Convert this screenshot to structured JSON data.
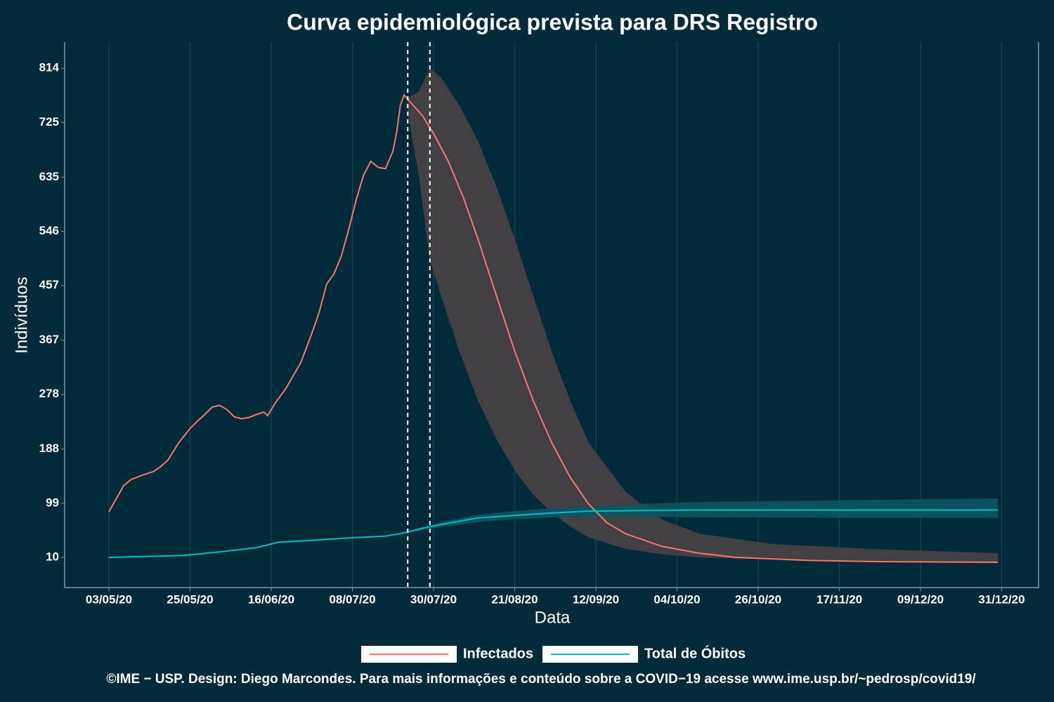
{
  "chart_data": {
    "type": "line",
    "title": "Curva epidemiológica prevista para DRS Registro",
    "x_label": "Data",
    "y_label": "Indivíduos",
    "caption": "©IME − USP. Design: Diego Marcondes. Para mais informações e conteúdo sobre a COVID−19 acesse www.ime.usp.br/~pedrosp/covid19/",
    "xlim": [
      "2020-04-21",
      "2021-01-10"
    ],
    "ylim": [
      -39.6,
      857
    ],
    "xticks": [
      {
        "value": "2020-05-03",
        "label": "03/05/20"
      },
      {
        "value": "2020-05-25",
        "label": "25/05/20"
      },
      {
        "value": "2020-06-16",
        "label": "16/06/20"
      },
      {
        "value": "2020-07-08",
        "label": "08/07/20"
      },
      {
        "value": "2020-07-30",
        "label": "30/07/20"
      },
      {
        "value": "2020-08-21",
        "label": "21/08/20"
      },
      {
        "value": "2020-09-12",
        "label": "12/09/20"
      },
      {
        "value": "2020-10-04",
        "label": "04/10/20"
      },
      {
        "value": "2020-10-26",
        "label": "26/10/20"
      },
      {
        "value": "2020-11-17",
        "label": "17/11/20"
      },
      {
        "value": "2020-12-09",
        "label": "09/12/20"
      },
      {
        "value": "2020-12-31",
        "label": "31/12/20"
      }
    ],
    "yticks": [
      10,
      99,
      188,
      278,
      367,
      457,
      546,
      635,
      725,
      814
    ],
    "grid": true,
    "vlines": [
      "2020-07-23",
      "2020-07-29"
    ],
    "series": [
      {
        "name": "Infectados",
        "color": "#F8766D",
        "band_color": "#4a4347",
        "x": [
          "2020-05-03",
          "2020-05-07",
          "2020-05-09",
          "2020-05-12",
          "2020-05-15",
          "2020-05-17",
          "2020-05-19",
          "2020-05-22",
          "2020-05-25",
          "2020-05-27",
          "2020-05-29",
          "2020-05-31",
          "2020-06-02",
          "2020-06-04",
          "2020-06-06",
          "2020-06-08",
          "2020-06-10",
          "2020-06-12",
          "2020-06-14",
          "2020-06-15",
          "2020-06-17",
          "2020-06-20",
          "2020-06-22",
          "2020-06-24",
          "2020-06-27",
          "2020-06-29",
          "2020-07-01",
          "2020-07-03",
          "2020-07-05",
          "2020-07-07",
          "2020-07-09",
          "2020-07-11",
          "2020-07-13",
          "2020-07-15",
          "2020-07-17",
          "2020-07-19",
          "2020-07-20",
          "2020-07-21",
          "2020-07-22",
          "2020-07-27",
          "2020-07-30",
          "2020-08-03",
          "2020-08-07",
          "2020-08-11",
          "2020-08-16",
          "2020-08-21",
          "2020-08-26",
          "2020-08-31",
          "2020-09-05",
          "2020-09-10",
          "2020-09-15",
          "2020-09-20",
          "2020-09-30",
          "2020-10-10",
          "2020-10-20",
          "2020-11-09",
          "2020-11-29",
          "2020-12-30"
        ],
        "values": [
          85,
          128,
          138,
          145,
          151,
          159,
          170,
          199,
          222,
          234,
          245,
          257,
          260,
          253,
          241,
          238,
          240,
          245,
          249,
          243,
          263,
          288,
          309,
          330,
          378,
          413,
          459,
          476,
          505,
          549,
          597,
          638,
          661,
          651,
          649,
          678,
          709,
          753,
          770,
          736,
          707,
          661,
          603,
          534,
          441,
          349,
          268,
          199,
          142,
          98,
          67,
          49,
          28,
          17,
          10,
          5,
          3,
          2
        ],
        "band": {
          "x": [
            "2020-07-23",
            "2020-07-26",
            "2020-07-29",
            "2020-08-01",
            "2020-08-06",
            "2020-08-11",
            "2020-08-16",
            "2020-08-21",
            "2020-08-26",
            "2020-08-31",
            "2020-09-05",
            "2020-09-10",
            "2020-09-20",
            "2020-09-30",
            "2020-10-10",
            "2020-10-30",
            "2020-11-29",
            "2020-12-30"
          ],
          "lower": [
            740,
            637,
            499,
            441,
            349,
            268,
            205,
            153,
            113,
            84,
            61,
            43,
            24,
            15,
            10,
            7,
            4,
            3
          ],
          "upper": [
            765,
            776,
            814,
            799,
            753,
            695,
            620,
            534,
            441,
            349,
            268,
            199,
            118,
            72,
            49,
            32,
            23,
            17
          ]
        }
      },
      {
        "name": "Total de Óbitos",
        "color": "#00BFC4",
        "band_color": "#0b5560",
        "x": [
          "2020-05-03",
          "2020-05-23",
          "2020-06-02",
          "2020-06-12",
          "2020-06-18",
          "2020-06-27",
          "2020-07-07",
          "2020-07-17",
          "2020-07-21",
          "2020-07-27",
          "2020-08-01",
          "2020-08-11",
          "2020-08-21",
          "2020-08-31",
          "2020-09-10",
          "2020-09-25",
          "2020-10-10",
          "2020-11-19",
          "2020-12-30"
        ],
        "values": [
          10,
          13,
          19,
          26,
          35,
          38,
          42,
          45,
          49,
          58,
          64,
          75,
          79,
          83,
          86,
          87,
          88,
          88,
          88
        ],
        "band": {
          "x": [
            "2020-07-23",
            "2020-08-01",
            "2020-08-11",
            "2020-08-21",
            "2020-08-31",
            "2020-09-20",
            "2020-10-10",
            "2020-11-19",
            "2020-12-30"
          ],
          "lower": [
            50,
            60,
            68,
            73,
            76,
            77,
            76,
            75,
            75
          ],
          "upper": [
            52,
            68,
            80,
            86,
            91,
            97,
            101,
            104,
            107
          ]
        }
      }
    ]
  }
}
